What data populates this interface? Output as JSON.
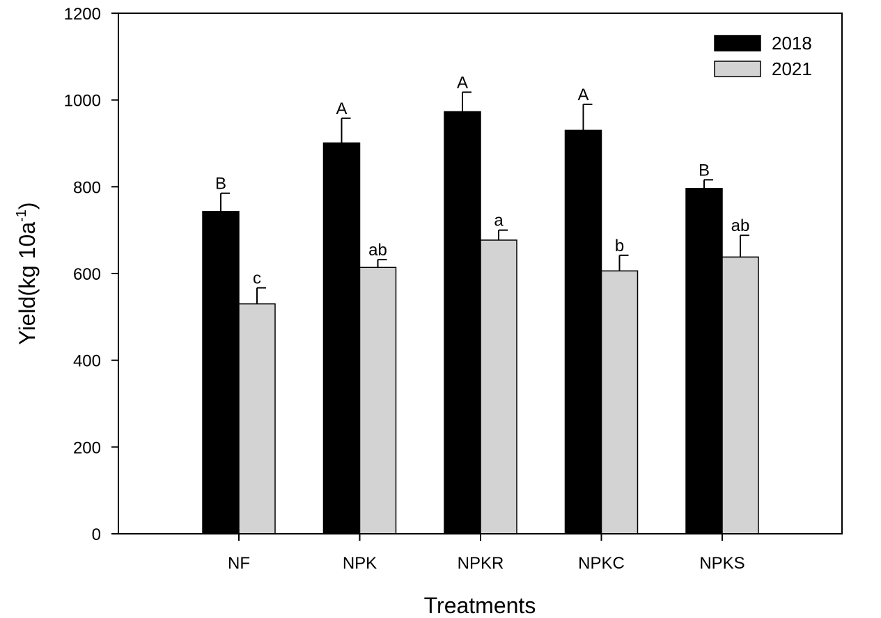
{
  "chart_data": {
    "type": "bar",
    "xlabel": "Treatments",
    "ylabel": {
      "main": "Yield(kg 10a",
      "sup": "-1",
      "end": ")"
    },
    "ylim": [
      0,
      1200
    ],
    "yticks": [
      0,
      200,
      400,
      600,
      800,
      1000,
      1200
    ],
    "categories": [
      "NF",
      "NPK",
      "NPKR",
      "NPKC",
      "NPKS"
    ],
    "legend_position": "top-right",
    "grid": false,
    "series": [
      {
        "name": "2018",
        "color": "#000000",
        "values": [
          743,
          901,
          973,
          930,
          796
        ],
        "errors": [
          42,
          57,
          45,
          60,
          20
        ],
        "labels": [
          "B",
          "A",
          "A",
          "A",
          "B"
        ]
      },
      {
        "name": "2021",
        "color": "#d3d3d3",
        "values": [
          530,
          614,
          677,
          606,
          638
        ],
        "errors": [
          37,
          18,
          23,
          36,
          50
        ],
        "labels": [
          "c",
          "ab",
          "a",
          "b",
          "ab"
        ]
      }
    ]
  }
}
